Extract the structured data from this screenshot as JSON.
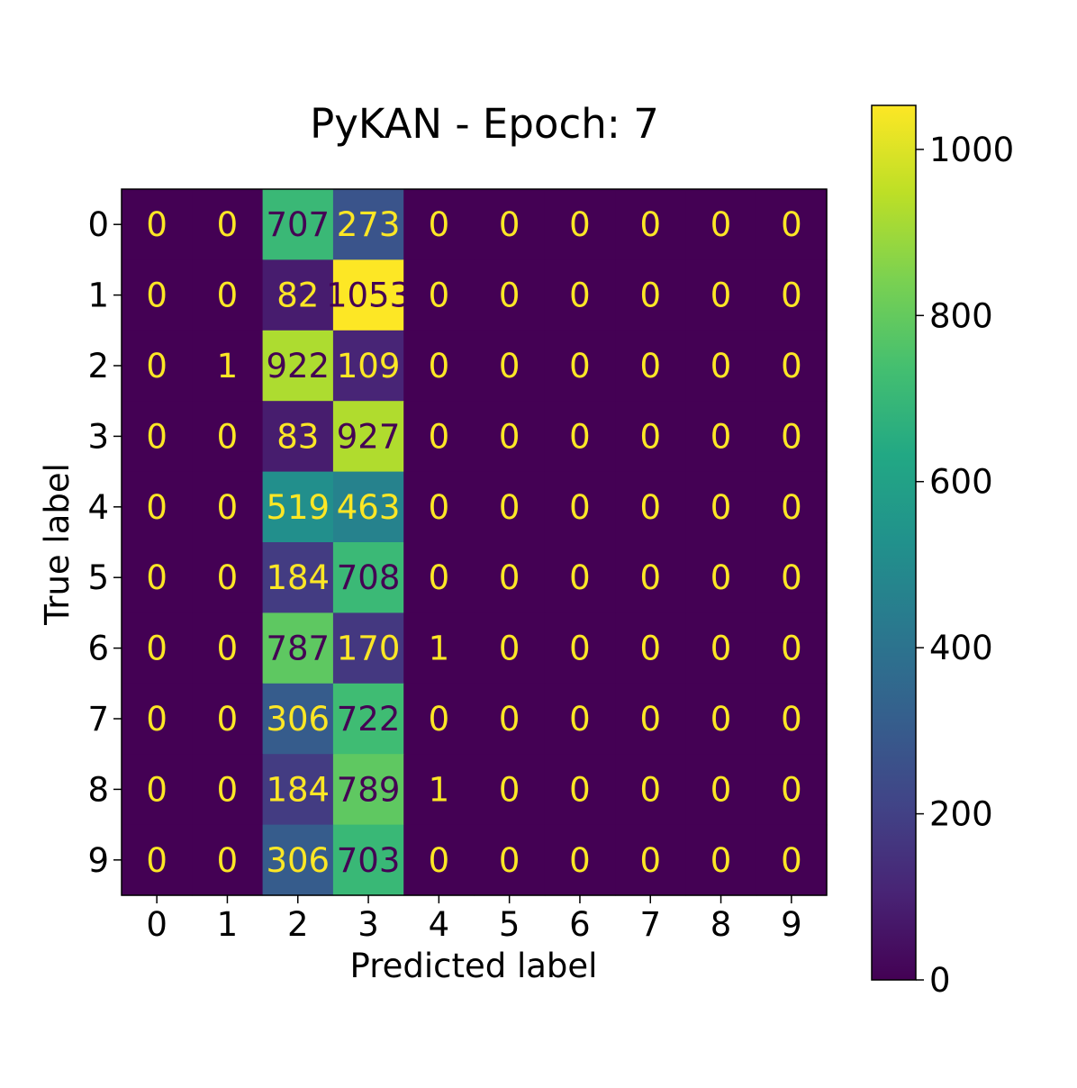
{
  "chart_data": {
    "type": "heatmap",
    "title": "PyKAN - Epoch: 7",
    "xlabel": "Predicted label",
    "ylabel": "True label",
    "x_categories": [
      "0",
      "1",
      "2",
      "3",
      "4",
      "5",
      "6",
      "7",
      "8",
      "9"
    ],
    "y_categories": [
      "0",
      "1",
      "2",
      "3",
      "4",
      "5",
      "6",
      "7",
      "8",
      "9"
    ],
    "matrix": [
      [
        0,
        0,
        707,
        273,
        0,
        0,
        0,
        0,
        0,
        0
      ],
      [
        0,
        0,
        82,
        1053,
        0,
        0,
        0,
        0,
        0,
        0
      ],
      [
        0,
        1,
        922,
        109,
        0,
        0,
        0,
        0,
        0,
        0
      ],
      [
        0,
        0,
        83,
        927,
        0,
        0,
        0,
        0,
        0,
        0
      ],
      [
        0,
        0,
        519,
        463,
        0,
        0,
        0,
        0,
        0,
        0
      ],
      [
        0,
        0,
        184,
        708,
        0,
        0,
        0,
        0,
        0,
        0
      ],
      [
        0,
        0,
        787,
        170,
        1,
        0,
        0,
        0,
        0,
        0
      ],
      [
        0,
        0,
        306,
        722,
        0,
        0,
        0,
        0,
        0,
        0
      ],
      [
        0,
        0,
        184,
        789,
        1,
        0,
        0,
        0,
        0,
        0
      ],
      [
        0,
        0,
        306,
        703,
        0,
        0,
        0,
        0,
        0,
        0
      ]
    ],
    "colormap": "viridis",
    "colorbar": {
      "range": [
        0,
        1053
      ],
      "ticks": [
        0,
        200,
        400,
        600,
        800,
        1000
      ]
    },
    "grid": false,
    "text_colors": {
      "on_dark": "#fde725",
      "on_light": "#440154"
    }
  }
}
